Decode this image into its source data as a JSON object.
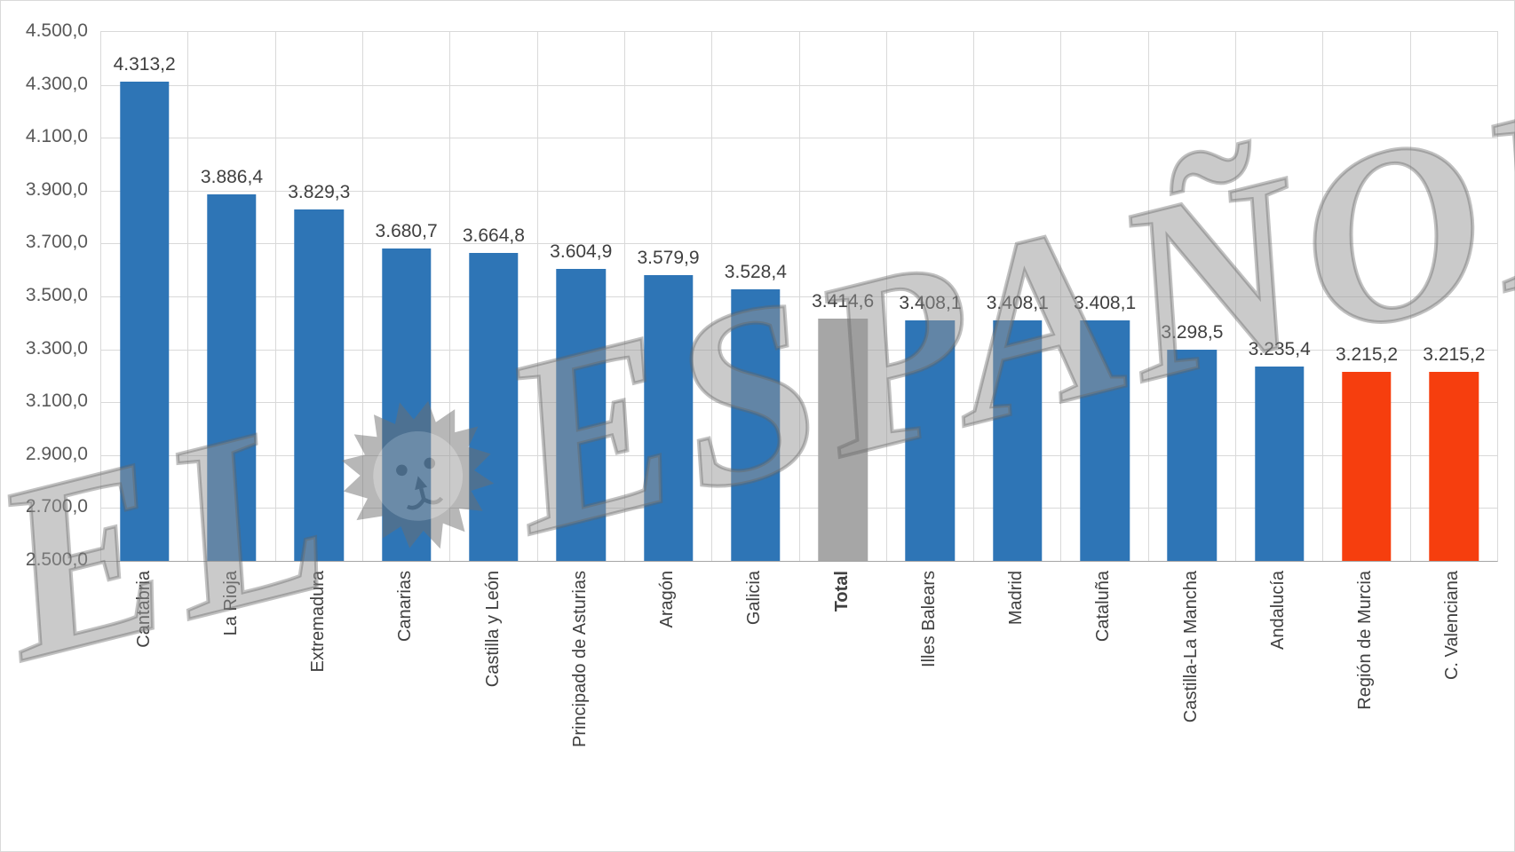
{
  "watermark": {
    "text_left": "EL",
    "text_right": "ESPAÑOL"
  },
  "chart_data": {
    "type": "bar",
    "title": "",
    "xlabel": "",
    "ylabel": "",
    "legend": "none",
    "grid": true,
    "ylim": [
      2500,
      4500
    ],
    "ytick_step": 200,
    "ytick_labels": [
      "4.500,0",
      "4.300,0",
      "4.100,0",
      "3.900,0",
      "3.700,0",
      "3.500,0",
      "3.300,0",
      "3.100,0",
      "2.900,0",
      "2.700,0",
      "2.500,0"
    ],
    "categories": [
      "Cantabria",
      "La Rioja",
      "Extremadura",
      "Canarias",
      "Castilla y León",
      "Principado de Asturias",
      "Aragón",
      "Galicia",
      "Total",
      "Illes Balears",
      "Madrid",
      "Cataluña",
      "Castilla-La Mancha",
      "Andalucía",
      "Región de Murcia",
      "C. Valenciana"
    ],
    "values": [
      4313.2,
      3886.4,
      3829.3,
      3680.7,
      3664.8,
      3604.9,
      3579.9,
      3528.4,
      3414.6,
      3408.1,
      3408.1,
      3408.1,
      3298.5,
      3235.4,
      3215.2,
      3215.2
    ],
    "value_labels": [
      "4.313,2",
      "3.886,4",
      "3.829,3",
      "3.680,7",
      "3.664,8",
      "3.604,9",
      "3.579,9",
      "3.528,4",
      "3.414,6",
      "3.408,1",
      "3.408,1",
      "3.408,1",
      "3.298,5",
      "3.235,4",
      "3.215,2",
      "3.215,2"
    ],
    "bar_colors": [
      "#2e75b6",
      "#2e75b6",
      "#2e75b6",
      "#2e75b6",
      "#2e75b6",
      "#2e75b6",
      "#2e75b6",
      "#2e75b6",
      "#a6a6a6",
      "#2e75b6",
      "#2e75b6",
      "#2e75b6",
      "#2e75b6",
      "#2e75b6",
      "#f63e0e",
      "#f63e0e"
    ],
    "bold_categories": [
      "Total"
    ],
    "colors": {
      "bar_default": "#2e75b6",
      "bar_total": "#a6a6a6",
      "bar_highlight": "#f63e0e",
      "gridline": "#d9d9d9",
      "axis_line": "#a6a6a6",
      "axis_text": "#595959",
      "data_label_text": "#404040"
    }
  }
}
